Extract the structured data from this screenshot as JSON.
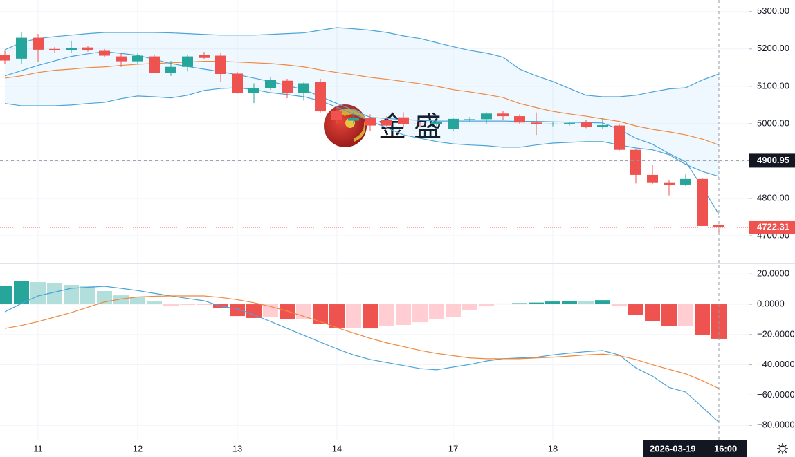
{
  "chart_data": [
    {
      "type": "candlestick",
      "categories": [
        null,
        null,
        "11",
        null,
        null,
        null,
        null,
        null,
        "12",
        null,
        null,
        null,
        null,
        null,
        "13",
        null,
        null,
        null,
        null,
        null,
        "14",
        null,
        null,
        null,
        null,
        null,
        null,
        "17",
        null,
        null,
        null,
        null,
        null,
        "18",
        null,
        null,
        null,
        null,
        null,
        null,
        null,
        null,
        null,
        null
      ],
      "open": [
        5183,
        5174,
        5230,
        5200,
        5196,
        5204,
        5195,
        5180,
        5167,
        5180,
        5135,
        5152,
        5184,
        5182,
        5134,
        5083,
        5096,
        5115,
        5083,
        5112,
        5035,
        5008,
        5015,
        5010,
        5017,
        5000,
        4998,
        4985,
        5010,
        5012,
        5027,
        5020,
        5003,
        4999,
        5000,
        5003,
        4991,
        4995,
        4930,
        4863,
        4843,
        4837,
        4852,
        4728
      ],
      "high": [
        5195,
        5245,
        5240,
        5205,
        5222,
        5208,
        5200,
        5190,
        5188,
        5185,
        5168,
        5185,
        5192,
        5190,
        5138,
        5108,
        5125,
        5120,
        5110,
        5120,
        5045,
        5030,
        5025,
        5020,
        5030,
        5005,
        5010,
        5015,
        5018,
        5030,
        5035,
        5025,
        5030,
        5005,
        5005,
        5010,
        5015,
        4998,
        4932,
        4890,
        4848,
        4865,
        4855,
        4730
      ],
      "low": [
        5160,
        5160,
        5165,
        5190,
        5190,
        5193,
        5178,
        5152,
        5160,
        5135,
        5128,
        5140,
        5172,
        5112,
        5080,
        5055,
        5090,
        5068,
        5062,
        5030,
        5000,
        5000,
        4980,
        4985,
        4988,
        4990,
        4995,
        4980,
        5005,
        5000,
        5010,
        5000,
        4970,
        4993,
        4995,
        4988,
        4985,
        4928,
        4840,
        4838,
        4808,
        4833,
        4726,
        4705
      ],
      "close": [
        5169,
        5230,
        5198,
        5196,
        5203,
        5197,
        5182,
        5167,
        5182,
        5135,
        5152,
        5180,
        5176,
        5133,
        5083,
        5096,
        5118,
        5083,
        5108,
        5033,
        5010,
        5015,
        4995,
        4995,
        4998,
        4998,
        5005,
        5013,
        5012,
        5027,
        5020,
        5003,
        4998,
        5000,
        5002,
        4991,
        4996,
        4930,
        4863,
        4843,
        4836,
        4852,
        4726,
        4722.31
      ],
      "up_color": "#26a69a",
      "down_color": "#ef5350",
      "band": {
        "upper": [
          5198,
          5217,
          5228,
          5233,
          5237,
          5241,
          5244,
          5244,
          5244,
          5244,
          5243,
          5241,
          5239,
          5237,
          5237,
          5237,
          5239,
          5241,
          5243,
          5250,
          5257,
          5254,
          5250,
          5244,
          5235,
          5228,
          5217,
          5206,
          5196,
          5189,
          5178,
          5146,
          5128,
          5113,
          5094,
          5076,
          5072,
          5072,
          5076,
          5085,
          5093,
          5096,
          5117,
          5133
        ],
        "lower": [
          5054,
          5048,
          5048,
          5048,
          5050,
          5054,
          5057,
          5067,
          5074,
          5072,
          5069,
          5076,
          5089,
          5094,
          5096,
          5091,
          5083,
          5078,
          5072,
          5061,
          5044,
          5026,
          5007,
          4989,
          4970,
          4961,
          4952,
          4946,
          4943,
          4941,
          4937,
          4937,
          4943,
          4948,
          4950,
          4952,
          4952,
          4943,
          4935,
          4930,
          4917,
          4891,
          4872,
          4859
        ],
        "color": "#4ba3d8",
        "fill": "rgba(33,150,243,0.07)"
      },
      "series": [
        {
          "color": "#f0883e",
          "values": [
            5122,
            5128,
            5137,
            5143,
            5146,
            5150,
            5152,
            5156,
            5159,
            5161,
            5163,
            5165,
            5167,
            5167,
            5165,
            5163,
            5161,
            5157,
            5152,
            5144,
            5137,
            5131,
            5124,
            5119,
            5113,
            5107,
            5100,
            5091,
            5085,
            5078,
            5070,
            5054,
            5043,
            5033,
            5026,
            5020,
            5013,
            5006,
            4994,
            4985,
            4978,
            4970,
            4959,
            4943
          ]
        },
        {
          "color": "#4ba3d8",
          "values": [
            5128,
            5142,
            5156,
            5168,
            5180,
            5187,
            5193,
            5188,
            5183,
            5172,
            5161,
            5153,
            5146,
            5139,
            5131,
            5122,
            5113,
            5102,
            5091,
            5073,
            5054,
            5036,
            5017,
            5014,
            5011,
            5009,
            5007,
            5007,
            5007,
            5007,
            5007,
            5006,
            5006,
            5005,
            5004,
            5003,
            5002,
            4985,
            4961,
            4945,
            4920,
            4898,
            4830,
            4757
          ]
        }
      ],
      "ylim": [
        4626,
        5331
      ],
      "yticks": [
        {
          "value": 5300,
          "label": "5300.00"
        },
        {
          "value": 5200,
          "label": "5200.00"
        },
        {
          "value": 5100,
          "label": "5100.00"
        },
        {
          "value": 5000,
          "label": "5000.00"
        },
        {
          "value": 4900,
          "label": "4900.00"
        },
        {
          "value": 4800,
          "label": "4800.00"
        },
        {
          "value": 4700,
          "label": "4700.00"
        }
      ],
      "price_lines": [
        {
          "value": 4900.95,
          "color": "#131722",
          "line": "#9598a1"
        },
        {
          "value": 4722.31,
          "color": "#ef5350",
          "line": "#ef5350"
        }
      ],
      "crosshair": {
        "date": "2026-03-19",
        "time": "16:00"
      },
      "watermark": "金 盛",
      "grid": true
    },
    {
      "type": "macd",
      "histogram": [
        11.9,
        15.1,
        14.6,
        13.7,
        12.8,
        11.9,
        8.7,
        5.9,
        4.6,
        1.8,
        -1.4,
        -0.5,
        -0.2,
        -2.7,
        -7.8,
        -9.1,
        -8.7,
        -10,
        -10,
        -12.8,
        -15.5,
        -15.5,
        -16,
        -14.6,
        -13.7,
        -11.9,
        -10,
        -8.2,
        -3.7,
        -1.4,
        0.5,
        0.7,
        1.1,
        1.8,
        2.3,
        2.3,
        2.7,
        -1.4,
        -7.3,
        -11.4,
        -14.2,
        -14.2,
        -20.1,
        -22.8
      ],
      "histogram_colors": {
        "up_grow": "#26a69a",
        "up_fall": "#b2dfdb",
        "down_grow": "#ef5350",
        "down_fall": "#ffcdd2"
      },
      "series": [
        {
          "color": "#4ba3d8",
          "values": [
            -5,
            0.5,
            5.5,
            8,
            10.5,
            11.2,
            11.9,
            10.5,
            9,
            7.2,
            5.5,
            3.8,
            2.3,
            -1.3,
            -3,
            -7,
            -11.4,
            -16,
            -20.5,
            -25,
            -29.5,
            -33.5,
            -36.5,
            -38.5,
            -40.5,
            -42.5,
            -43.3,
            -41.5,
            -39.8,
            -37.5,
            -36,
            -35.5,
            -35,
            -33.5,
            -32.3,
            -31.3,
            -30.6,
            -33.5,
            -42,
            -47.5,
            -55,
            -58,
            -68,
            -78
          ]
        },
        {
          "color": "#f0883e",
          "values": [
            -16,
            -14,
            -11.5,
            -8.5,
            -5.5,
            -2,
            1.5,
            3.5,
            4.8,
            5.3,
            5.5,
            5.5,
            5.5,
            4.5,
            3,
            1,
            -1.5,
            -4.5,
            -8,
            -11.5,
            -15.5,
            -19,
            -22.5,
            -25.5,
            -28,
            -30.5,
            -32.5,
            -34,
            -35.5,
            -36,
            -36,
            -36,
            -35.5,
            -35,
            -34.3,
            -33.5,
            -33,
            -34,
            -36.5,
            -40,
            -43,
            -46,
            -50.5,
            -55.7
          ]
        }
      ],
      "ylim": [
        -89.5,
        26.5
      ],
      "yticks": [
        {
          "value": 20,
          "label": "20.0000"
        },
        {
          "value": 0,
          "label": "0.0000"
        },
        {
          "value": -20,
          "label": "−20.0000"
        },
        {
          "value": -40,
          "label": "−40.0000"
        },
        {
          "value": -60,
          "label": "−60.0000"
        },
        {
          "value": -80,
          "label": "−80.0000"
        }
      ],
      "grid": true
    }
  ]
}
